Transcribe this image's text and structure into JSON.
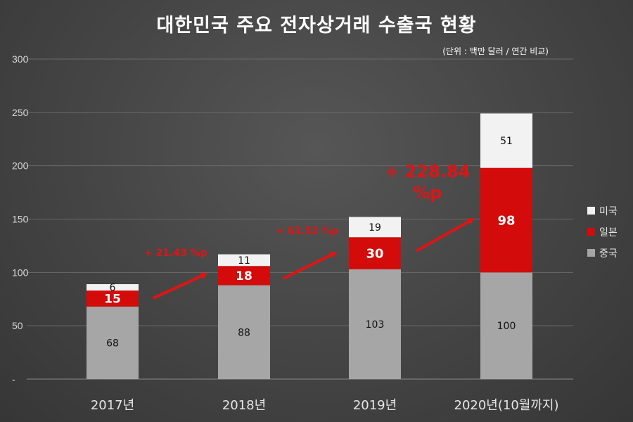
{
  "header": {
    "title": "대한민국 주요 전자상거래 수출국 현황",
    "unit": "(단위 : 백만 달러 / 연간 비교)"
  },
  "chart_data": {
    "type": "bar",
    "stacked": true,
    "categories": [
      "2017년",
      "2018년",
      "2019년",
      "2020년(10월까지)"
    ],
    "series": [
      {
        "name": "중국",
        "values": [
          68,
          88,
          103,
          100
        ],
        "color": "#a6a6a6",
        "label_color": "#111111",
        "label_bold": false
      },
      {
        "name": "일본",
        "values": [
          15,
          18,
          30,
          98
        ],
        "color": "#d40b0b",
        "label_color": "#ffffff",
        "label_bold": true
      },
      {
        "name": "미국",
        "values": [
          6,
          11,
          19,
          51
        ],
        "color": "#f2f2f2",
        "label_color": "#111111",
        "label_bold": false
      }
    ],
    "ylim": [
      0,
      300
    ],
    "yticks": [
      0,
      50,
      100,
      150,
      200,
      250,
      300
    ],
    "ytick_labels": [
      "-",
      "50",
      "100",
      "150",
      "200",
      "250",
      "300"
    ],
    "grid": true,
    "legend_position": "right",
    "annotations": [
      {
        "text": "+ 21.43 %p",
        "from": 0,
        "to": 1
      },
      {
        "text": "+ 63.52 %p",
        "from": 1,
        "to": 2
      },
      {
        "text": "+ 228.84 %p",
        "from": 2,
        "to": 3
      }
    ],
    "colors": {
      "background": "#474747",
      "grid": "#6a6a6a",
      "arrow": "#e01414"
    }
  }
}
